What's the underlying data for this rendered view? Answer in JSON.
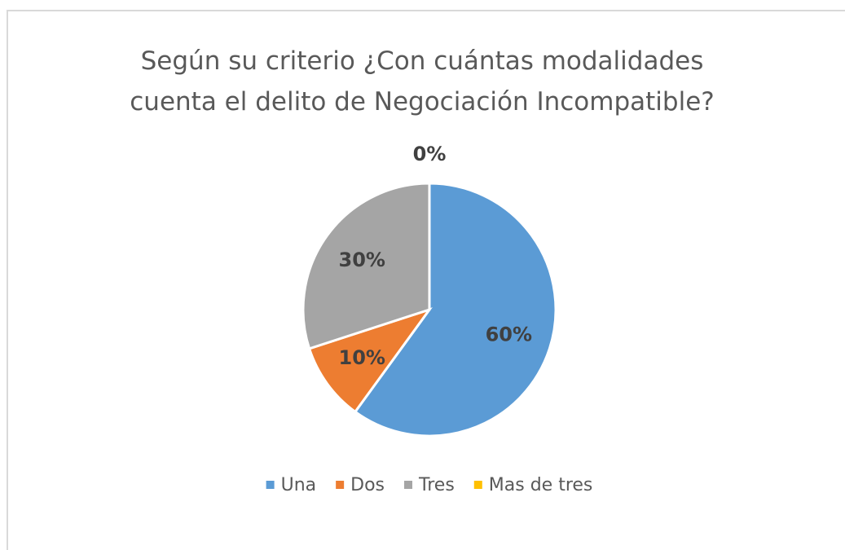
{
  "chart_data": {
    "type": "pie",
    "title": "Según su criterio ¿Con cuántas modalidades cuenta el delito de Negociación Incompatible?",
    "categories": [
      "Una",
      "Dos",
      "Tres",
      "Mas de tres"
    ],
    "values": [
      60,
      10,
      30,
      0
    ],
    "value_labels": [
      "60%",
      "10%",
      "30%",
      "0%"
    ],
    "colors": [
      "#5b9bd5",
      "#ed7d31",
      "#a5a5a5",
      "#ffc000"
    ],
    "legend": "bottom"
  }
}
